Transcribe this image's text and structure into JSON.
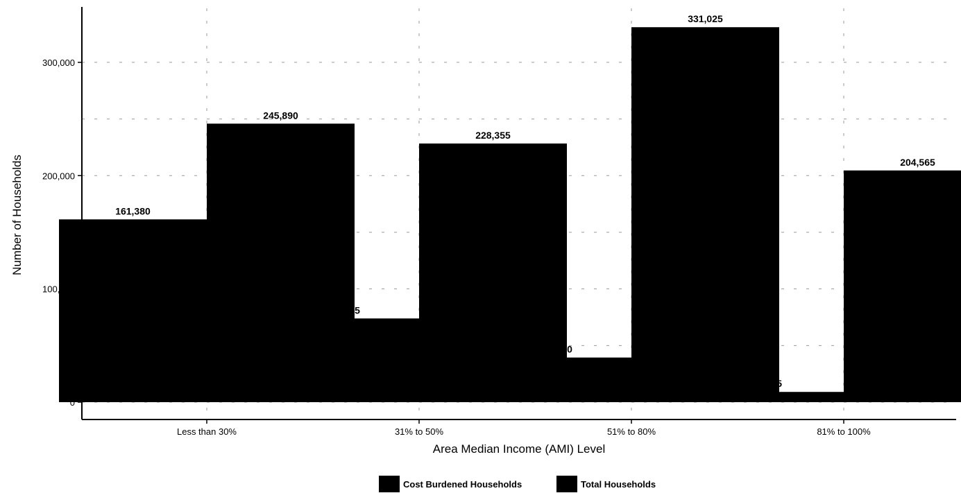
{
  "chart_data": {
    "type": "bar",
    "categories": [
      "Less than 30%",
      "31% to 50%",
      "51% to 80%",
      "81% to 100%"
    ],
    "series": [
      {
        "name": "Cost Burdened Households",
        "values": [
          161380,
          73905,
          39400,
          9045
        ],
        "labels": [
          "161,380",
          "73,905",
          "39,400",
          "9,045"
        ],
        "color": "#000000"
      },
      {
        "name": "Total Households",
        "values": [
          245890,
          228355,
          331025,
          204565
        ],
        "labels": [
          "245,890",
          "228,355",
          "331,025",
          "204,565"
        ],
        "color": "#000000"
      }
    ],
    "xlabel": "Area Median Income (AMI) Level",
    "ylabel": "Number of Households",
    "yticks": [
      0,
      100000,
      200000,
      300000
    ],
    "ytick_labels": [
      "0",
      "100,000",
      "200,000",
      "300,000"
    ],
    "ylim": [
      0,
      350000
    ],
    "grid": true,
    "legend_position": "bottom"
  }
}
